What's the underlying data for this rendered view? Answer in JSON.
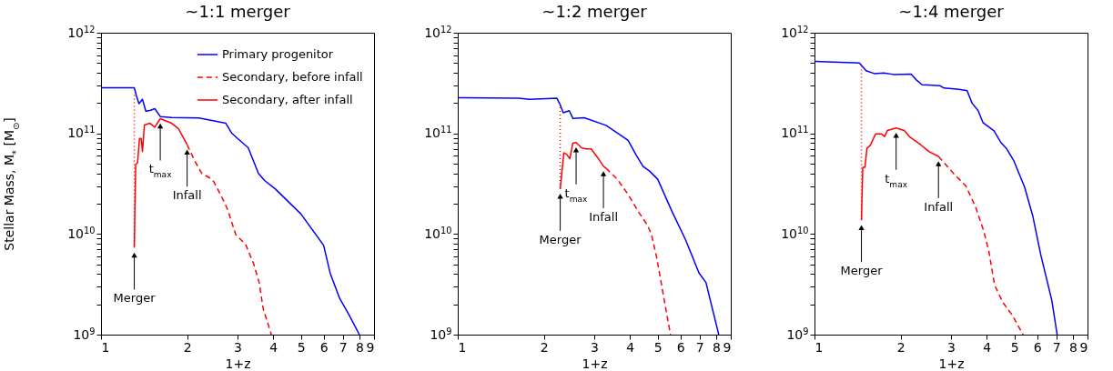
{
  "chart_data": [
    {
      "type": "line",
      "title": "~1:1 merger",
      "xlabel": "1+z",
      "ylabel": "Stellar Mass, M$_{*}$ [M$_{⊙}$]",
      "log": "xy",
      "legend": "top right",
      "xlim": [
        1,
        9
      ],
      "ylim": [
        1000000000,
        1000000000000
      ],
      "xticks": [
        1,
        2,
        3,
        4,
        5,
        6,
        7,
        8,
        9
      ],
      "yticks": [
        {
          "value": 1000000000,
          "label": "10$^{9}$"
        },
        {
          "value": 2000000000,
          "label": null
        },
        {
          "value": 3000000000,
          "label": null
        },
        {
          "value": 4000000000,
          "label": null
        },
        {
          "value": 5000000000,
          "label": null
        },
        {
          "value": 6000000000,
          "label": null
        },
        {
          "value": 7000000000,
          "label": null
        },
        {
          "value": 8000000000,
          "label": null
        },
        {
          "value": 9000000000,
          "label": null
        },
        {
          "value": 10000000000,
          "label": "10$^{10}$"
        },
        {
          "value": 20000000000,
          "label": null
        },
        {
          "value": 30000000000,
          "label": null
        },
        {
          "value": 40000000000,
          "label": null
        },
        {
          "value": 50000000000,
          "label": null
        },
        {
          "value": 60000000000,
          "label": null
        },
        {
          "value": 70000000000,
          "label": null
        },
        {
          "value": 80000000000,
          "label": null
        },
        {
          "value": 90000000000,
          "label": null
        },
        {
          "value": 100000000000,
          "label": "10$^{11}$"
        },
        {
          "value": 200000000000,
          "label": null
        },
        {
          "value": 300000000000,
          "label": null
        },
        {
          "value": 400000000000,
          "label": null
        },
        {
          "value": 500000000000,
          "label": null
        },
        {
          "value": 600000000000,
          "label": null
        },
        {
          "value": 700000000000,
          "label": null
        },
        {
          "value": 800000000000,
          "label": null
        },
        {
          "value": 900000000000,
          "label": null
        },
        {
          "value": 1000000000000,
          "label": "10$^{12}$"
        }
      ],
      "series": [
        {
          "name": "Primary progenitor",
          "color": "#0000ff",
          "line_style": "solid",
          "x": [
            1,
            1.307,
            1.328,
            1.357,
            1.396,
            1.434,
            1.482,
            1.541,
            1.611,
            1.766,
            2.2,
            2.51,
            2.73,
            2.86,
            3.0,
            3.27,
            3.55,
            3.73,
            4.07,
            5.0,
            6.0,
            6.32,
            6.82,
            7.37,
            8.0
          ],
          "values": [
            284000000000.0,
            284000000000.0,
            239000000000.0,
            197000000000.0,
            218000000000.0,
            166000000000.0,
            169000000000.0,
            176000000000.0,
            147000000000.0,
            144000000000.0,
            142000000000.0,
            132000000000.0,
            126000000000.0,
            101000000000.0,
            89000000000.0,
            72000000000.0,
            40000000000.0,
            34000000000.0,
            28000000000.0,
            15800000000.0,
            7700000000.0,
            4100000000.0,
            2300000000.0,
            1560000000.0,
            1000000000.0
          ]
        },
        {
          "name": "Secondary, before infall",
          "color": "#ff0000",
          "line_style": "dashed",
          "x": [
            2.0,
            2.13,
            2.25,
            2.4,
            2.48,
            2.68,
            2.77,
            2.96,
            3.2,
            3.42,
            3.57,
            3.69,
            3.94
          ],
          "values": [
            77000000000.0,
            53000000000.0,
            40000000000.0,
            36000000000.0,
            33000000000.0,
            21500000000.0,
            17500000000.0,
            9800000000.0,
            7900000000.0,
            5000000000.0,
            3300000000.0,
            1800000000.0,
            1000000000.0
          ]
        },
        {
          "name": "Secondary, after infall",
          "color": "#ff0000",
          "line_style": "solid",
          "x": [
            1.307,
            1.322,
            1.342,
            1.363,
            1.381,
            1.396,
            1.418,
            1.482,
            1.541,
            1.611,
            1.766,
            1.866,
            2.0
          ],
          "values": [
            7300000000.0,
            49000000000.0,
            51000000000.0,
            89000000000.0,
            89000000000.0,
            66000000000.0,
            121000000000.0,
            126000000000.0,
            115000000000.0,
            140000000000.0,
            126000000000.0,
            111000000000.0,
            77000000000.0
          ]
        },
        {
          "color": "#ff0000",
          "line_style": "dotted",
          "x": [
            1.307,
            1.307
          ],
          "values": [
            240000000000.0,
            7300000000.0
          ]
        }
      ],
      "annotations": [
        {
          "text": "Merger",
          "x": 1.307,
          "y": 7300000000.0
        },
        {
          "text": "t$_{max}$",
          "x": 1.611,
          "y": 140000000000.0
        },
        {
          "text": "Infall",
          "x": 2.0,
          "y": 77000000000.0
        }
      ]
    },
    {
      "type": "line",
      "title": "~1:2 merger",
      "xlabel": "1+z",
      "log": "xy",
      "xlim": [
        1,
        9
      ],
      "ylim": [
        1000000000,
        1000000000000
      ],
      "xticks": [
        1,
        2,
        3,
        4,
        5,
        6,
        7,
        8,
        9
      ],
      "yticks": [
        {
          "value": 1000000000,
          "label": "10$^{9}$"
        },
        {
          "value": 2000000000,
          "label": null
        },
        {
          "value": 3000000000,
          "label": null
        },
        {
          "value": 4000000000,
          "label": null
        },
        {
          "value": 5000000000,
          "label": null
        },
        {
          "value": 6000000000,
          "label": null
        },
        {
          "value": 7000000000,
          "label": null
        },
        {
          "value": 8000000000,
          "label": null
        },
        {
          "value": 9000000000,
          "label": null
        },
        {
          "value": 10000000000,
          "label": "10$^{10}$"
        },
        {
          "value": 20000000000,
          "label": null
        },
        {
          "value": 30000000000,
          "label": null
        },
        {
          "value": 40000000000,
          "label": null
        },
        {
          "value": 50000000000,
          "label": null
        },
        {
          "value": 60000000000,
          "label": null
        },
        {
          "value": 70000000000,
          "label": null
        },
        {
          "value": 80000000000,
          "label": null
        },
        {
          "value": 90000000000,
          "label": null
        },
        {
          "value": 100000000000,
          "label": "10$^{11}$"
        },
        {
          "value": 200000000000,
          "label": null
        },
        {
          "value": 300000000000,
          "label": null
        },
        {
          "value": 400000000000,
          "label": null
        },
        {
          "value": 500000000000,
          "label": null
        },
        {
          "value": 600000000000,
          "label": null
        },
        {
          "value": 700000000000,
          "label": null
        },
        {
          "value": 800000000000,
          "label": null
        },
        {
          "value": 900000000000,
          "label": null
        },
        {
          "value": 1000000000000,
          "label": "10$^{12}$"
        }
      ],
      "series": [
        {
          "color": "#0000ff",
          "line_style": "solid",
          "x": [
            1,
            1.633,
            1.784,
            2.222,
            2.271,
            2.338,
            2.453,
            2.525,
            2.768,
            3.3,
            3.94,
            4.2,
            4.44,
            4.69,
            5.0,
            5.6,
            6.25,
            6.97,
            7.37,
            8.17
          ],
          "values": [
            226000000000.0,
            223000000000.0,
            218000000000.0,
            223000000000.0,
            197000000000.0,
            160000000000.0,
            168000000000.0,
            141000000000.0,
            143000000000.0,
            120000000000.0,
            85000000000.0,
            61000000000.0,
            47000000000.0,
            42000000000.0,
            35000000000.0,
            16900000000.0,
            8800000000.0,
            4100000000.0,
            3300000000.0,
            1000000000.0
          ]
        },
        {
          "color": "#ff0000",
          "line_style": "dashed",
          "x": [
            3.3,
            3.61,
            3.94,
            4.3,
            4.59,
            4.75,
            4.96,
            5.18,
            5.36,
            5.54
          ],
          "values": [
            45000000000.0,
            35000000000.0,
            24700000000.0,
            16300000000.0,
            12400000000.0,
            10000000000.0,
            5800000000.0,
            2900000000.0,
            1680000000.0,
            1000000000.0
          ]
        },
        {
          "color": "#ff0000",
          "line_style": "solid",
          "x": [
            2.281,
            2.348,
            2.4,
            2.464,
            2.525,
            2.592,
            2.708,
            2.8,
            2.925,
            3.09,
            3.23,
            3.3
          ],
          "values": [
            28000000000.0,
            64000000000.0,
            62000000000.0,
            56000000000.0,
            80000000000.0,
            81000000000.0,
            72000000000.0,
            70000000000.0,
            70000000000.0,
            57000000000.0,
            47000000000.0,
            45000000000.0
          ]
        },
        {
          "color": "#ff0000",
          "line_style": "dotted",
          "x": [
            2.281,
            2.281
          ],
          "values": [
            197000000000.0,
            28000000000.0
          ]
        }
      ],
      "annotations": [
        {
          "text": "Merger",
          "x": 2.281,
          "y": 28000000000.0
        },
        {
          "text": "t$_{max}$",
          "x": 2.592,
          "y": 81000000000.0
        },
        {
          "text": "Infall",
          "x": 3.23,
          "y": 47000000000.0
        }
      ]
    },
    {
      "type": "line",
      "title": "~1:4 merger",
      "xlabel": "1+z",
      "log": "xy",
      "xlim": [
        1,
        9
      ],
      "ylim": [
        1000000000,
        1000000000000
      ],
      "xticks": [
        1,
        2,
        3,
        4,
        5,
        6,
        7,
        8,
        9
      ],
      "yticks": [
        {
          "value": 1000000000,
          "label": "10$^{9}$"
        },
        {
          "value": 2000000000,
          "label": null
        },
        {
          "value": 3000000000,
          "label": null
        },
        {
          "value": 4000000000,
          "label": null
        },
        {
          "value": 5000000000,
          "label": null
        },
        {
          "value": 6000000000,
          "label": null
        },
        {
          "value": 7000000000,
          "label": null
        },
        {
          "value": 8000000000,
          "label": null
        },
        {
          "value": 9000000000,
          "label": null
        },
        {
          "value": 10000000000,
          "label": "10$^{10}$"
        },
        {
          "value": 20000000000,
          "label": null
        },
        {
          "value": 30000000000,
          "label": null
        },
        {
          "value": 40000000000,
          "label": null
        },
        {
          "value": 50000000000,
          "label": null
        },
        {
          "value": 60000000000,
          "label": null
        },
        {
          "value": 70000000000,
          "label": null
        },
        {
          "value": 80000000000,
          "label": null
        },
        {
          "value": 90000000000,
          "label": null
        },
        {
          "value": 100000000000,
          "label": "10$^{11}$"
        },
        {
          "value": 200000000000,
          "label": null
        },
        {
          "value": 300000000000,
          "label": null
        },
        {
          "value": 400000000000,
          "label": null
        },
        {
          "value": 500000000000,
          "label": null
        },
        {
          "value": 600000000000,
          "label": null
        },
        {
          "value": 700000000000,
          "label": null
        },
        {
          "value": 800000000000,
          "label": null
        },
        {
          "value": 900000000000,
          "label": null
        },
        {
          "value": 1000000000000,
          "label": "10$^{12}$"
        }
      ],
      "series": [
        {
          "color": "#0000ff",
          "line_style": "solid",
          "x": [
            1,
            1.434,
            1.466,
            1.514,
            1.618,
            1.747,
            1.887,
            2.177,
            2.275,
            2.377,
            2.742,
            2.834,
            3.2,
            3.415,
            3.553,
            3.73,
            3.88,
            4.24,
            4.47,
            4.7,
            4.98,
            5.42,
            5.79,
            6.18,
            6.75,
            7.05
          ],
          "values": [
            519000000000.0,
            500000000000.0,
            468000000000.0,
            420000000000.0,
            393000000000.0,
            398000000000.0,
            385000000000.0,
            388000000000.0,
            338000000000.0,
            304000000000.0,
            298000000000.0,
            282000000000.0,
            274000000000.0,
            265000000000.0,
            200000000000.0,
            169000000000.0,
            128000000000.0,
            106000000000.0,
            82000000000.0,
            70000000000.0,
            53000000000.0,
            29400000000.0,
            15200000000.0,
            6200000000.0,
            2200000000.0,
            1000000000.0
          ]
        },
        {
          "color": "#ff0000",
          "line_style": "dashed",
          "x": [
            2.712,
            3.06,
            3.38,
            3.65,
            3.9,
            4.07,
            4.26,
            4.55,
            4.91,
            5.36
          ],
          "values": [
            59000000000.0,
            40000000000.0,
            30000000000.0,
            18800000000.0,
            10800000000.0,
            6700000000.0,
            3100000000.0,
            2100000000.0,
            1560000000.0,
            1000000000.0
          ]
        },
        {
          "color": "#ff0000",
          "line_style": "solid",
          "x": [
            1.459,
            1.475,
            1.501,
            1.525,
            1.566,
            1.636,
            1.71,
            1.759,
            1.798,
            1.929,
            2.06,
            2.153,
            2.351,
            2.51,
            2.712
          ],
          "values": [
            13700000000.0,
            46000000000.0,
            46000000000.0,
            71000000000.0,
            76000000000.0,
            99000000000.0,
            99000000000.0,
            93000000000.0,
            107000000000.0,
            113000000000.0,
            107000000000.0,
            92000000000.0,
            77000000000.0,
            66000000000.0,
            59000000000.0
          ]
        },
        {
          "color": "#ff0000",
          "line_style": "dotted",
          "x": [
            1.459,
            1.459
          ],
          "values": [
            468000000000.0,
            13700000000.0
          ]
        }
      ],
      "annotations": [
        {
          "text": "Merger",
          "x": 1.459,
          "y": 13700000000.0
        },
        {
          "text": "t$_{max}$",
          "x": 1.929,
          "y": 113000000000.0
        },
        {
          "text": "Infall",
          "x": 2.712,
          "y": 59000000000.0
        }
      ]
    }
  ]
}
